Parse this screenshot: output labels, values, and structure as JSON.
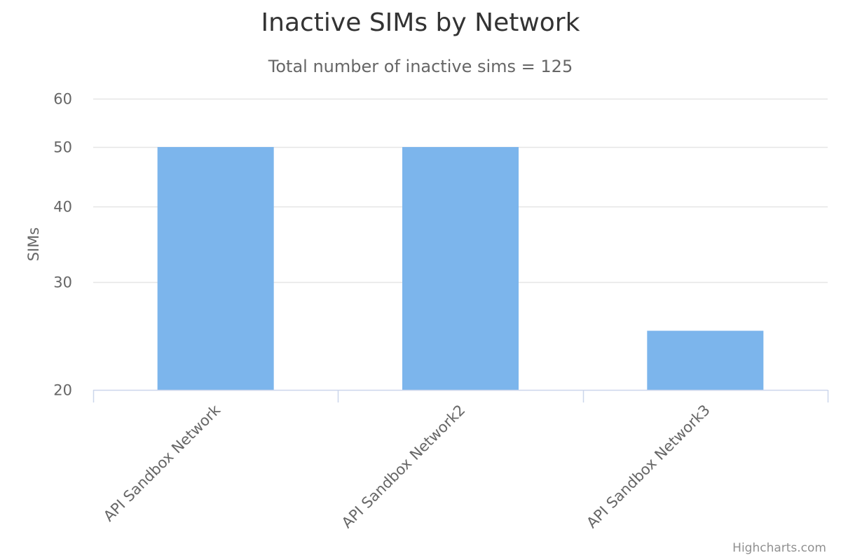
{
  "chart_data": {
    "type": "bar",
    "title": "Inactive SIMs by Network",
    "subtitle": "Total number of inactive sims = 125",
    "xlabel": "",
    "ylabel": "SIMs",
    "categories": [
      "API Sandbox Network",
      "API Sandbox Network2",
      "API Sandbox Network3"
    ],
    "values": [
      50,
      50,
      25
    ],
    "y_scale": "log",
    "ylim": [
      20,
      60
    ],
    "y_ticks": [
      20,
      30,
      40,
      50,
      60
    ],
    "grid": true,
    "legend": "none",
    "colors": {
      "bar": "#7cb5ec",
      "grid": "#e6e6e6",
      "axis": "#ccd6eb"
    }
  },
  "credits": "Highcharts.com"
}
